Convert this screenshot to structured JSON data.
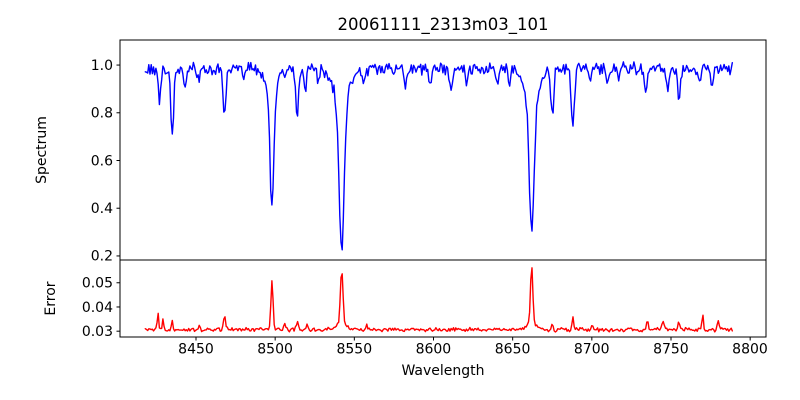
{
  "chart_data": {
    "type": "line",
    "title": "20061111_2313m03_101",
    "xlabel": "Wavelength",
    "grid": false,
    "legend": null,
    "xlim": [
      8402,
      8810
    ],
    "x_ticks": [
      8450,
      8500,
      8550,
      8600,
      8650,
      8700,
      8750,
      8800
    ],
    "x_data_range": [
      8418,
      8789
    ],
    "sample_step_angstrom": 0.74,
    "subplots": [
      {
        "name": "spectrum",
        "ylabel": "Spectrum",
        "line_color": "#0000ff",
        "ylim": [
          0.183,
          1.105
        ],
        "y_ticks": [
          1.0,
          0.8,
          0.6,
          0.4,
          0.2
        ],
        "continuum_level": 0.985,
        "noise_amplitude": 0.032,
        "absorption_lines": [
          {
            "center": 8427.0,
            "depth": 0.14,
            "sigma": 0.8
          },
          {
            "center": 8435.0,
            "depth": 0.28,
            "sigma": 0.9
          },
          {
            "center": 8443.0,
            "depth": 0.07,
            "sigma": 0.8
          },
          {
            "center": 8452.0,
            "depth": 0.05,
            "sigma": 0.7
          },
          {
            "center": 8468.0,
            "depth": 0.21,
            "sigma": 0.9
          },
          {
            "center": 8480.0,
            "depth": 0.05,
            "sigma": 0.7
          },
          {
            "center": 8498.0,
            "depth": 0.5,
            "sigma": 1.2
          },
          {
            "center": 8498.0,
            "depth": 0.09,
            "sigma": 4.0
          },
          {
            "center": 8514.0,
            "depth": 0.2,
            "sigma": 0.9
          },
          {
            "center": 8519.0,
            "depth": 0.1,
            "sigma": 0.8
          },
          {
            "center": 8527.0,
            "depth": 0.06,
            "sigma": 0.7
          },
          {
            "center": 8542.0,
            "depth": 0.62,
            "sigma": 1.6
          },
          {
            "center": 8542.0,
            "depth": 0.14,
            "sigma": 5.0
          },
          {
            "center": 8556.0,
            "depth": 0.06,
            "sigma": 0.8
          },
          {
            "center": 8582.0,
            "depth": 0.08,
            "sigma": 0.8
          },
          {
            "center": 8598.0,
            "depth": 0.07,
            "sigma": 0.8
          },
          {
            "center": 8611.0,
            "depth": 0.08,
            "sigma": 0.8
          },
          {
            "center": 8621.0,
            "depth": 0.06,
            "sigma": 0.7
          },
          {
            "center": 8640.0,
            "depth": 0.08,
            "sigma": 0.8
          },
          {
            "center": 8648.0,
            "depth": 0.06,
            "sigma": 0.7
          },
          {
            "center": 8662.0,
            "depth": 0.55,
            "sigma": 1.5
          },
          {
            "center": 8662.0,
            "depth": 0.14,
            "sigma": 4.5
          },
          {
            "center": 8675.0,
            "depth": 0.2,
            "sigma": 0.9
          },
          {
            "center": 8688.0,
            "depth": 0.24,
            "sigma": 1.0
          },
          {
            "center": 8699.0,
            "depth": 0.06,
            "sigma": 0.7
          },
          {
            "center": 8710.0,
            "depth": 0.05,
            "sigma": 0.7
          },
          {
            "center": 8717.0,
            "depth": 0.05,
            "sigma": 0.7
          },
          {
            "center": 8734.0,
            "depth": 0.1,
            "sigma": 0.9
          },
          {
            "center": 8748.0,
            "depth": 0.08,
            "sigma": 0.8
          },
          {
            "center": 8755.0,
            "depth": 0.11,
            "sigma": 0.8
          },
          {
            "center": 8768.0,
            "depth": 0.07,
            "sigma": 0.7
          },
          {
            "center": 8776.0,
            "depth": 0.08,
            "sigma": 0.8
          }
        ],
        "deepest_points": [
          {
            "wavelength": 8498,
            "flux": 0.39
          },
          {
            "wavelength": 8542,
            "flux": 0.23
          },
          {
            "wavelength": 8662,
            "flux": 0.29
          }
        ]
      },
      {
        "name": "error",
        "ylabel": "Error",
        "line_color": "#ff0000",
        "ylim": [
          0.0276,
          0.0594
        ],
        "y_ticks": [
          0.05,
          0.04,
          0.03
        ],
        "baseline_level": 0.0306,
        "noise_amplitude": 0.001,
        "spikes": [
          {
            "center": 8426.0,
            "height": 0.007,
            "sigma": 0.5
          },
          {
            "center": 8429.0,
            "height": 0.0048,
            "sigma": 0.4
          },
          {
            "center": 8435.0,
            "height": 0.004,
            "sigma": 0.5
          },
          {
            "center": 8452.0,
            "height": 0.0018,
            "sigma": 0.5
          },
          {
            "center": 8468.0,
            "height": 0.006,
            "sigma": 0.6
          },
          {
            "center": 8498.0,
            "height": 0.02,
            "sigma": 0.7
          },
          {
            "center": 8506.0,
            "height": 0.0028,
            "sigma": 0.5
          },
          {
            "center": 8514.0,
            "height": 0.0032,
            "sigma": 0.6
          },
          {
            "center": 8520.0,
            "height": 0.0028,
            "sigma": 0.5
          },
          {
            "center": 8542.0,
            "height": 0.022,
            "sigma": 0.8
          },
          {
            "center": 8542.0,
            "height": 0.003,
            "sigma": 3.0
          },
          {
            "center": 8558.0,
            "height": 0.0018,
            "sigma": 0.5
          },
          {
            "center": 8662.0,
            "height": 0.024,
            "sigma": 0.7
          },
          {
            "center": 8662.0,
            "height": 0.003,
            "sigma": 3.0
          },
          {
            "center": 8675.0,
            "height": 0.002,
            "sigma": 0.5
          },
          {
            "center": 8688.0,
            "height": 0.0055,
            "sigma": 0.5
          },
          {
            "center": 8700.0,
            "height": 0.0016,
            "sigma": 0.5
          },
          {
            "center": 8735.0,
            "height": 0.003,
            "sigma": 0.7
          },
          {
            "center": 8745.0,
            "height": 0.0034,
            "sigma": 0.8
          },
          {
            "center": 8755.0,
            "height": 0.003,
            "sigma": 0.6
          },
          {
            "center": 8770.0,
            "height": 0.0068,
            "sigma": 0.5
          },
          {
            "center": 8780.0,
            "height": 0.0036,
            "sigma": 0.6
          }
        ]
      }
    ]
  },
  "axes": {
    "x_tick_labels": [
      "8450",
      "8500",
      "8550",
      "8600",
      "8650",
      "8700",
      "8750",
      "8800"
    ],
    "spectrum_y_tick_labels": [
      "1.0",
      "0.8",
      "0.6",
      "0.4",
      "0.2"
    ],
    "error_y_tick_labels": [
      "0.05",
      "0.04",
      "0.03"
    ]
  }
}
